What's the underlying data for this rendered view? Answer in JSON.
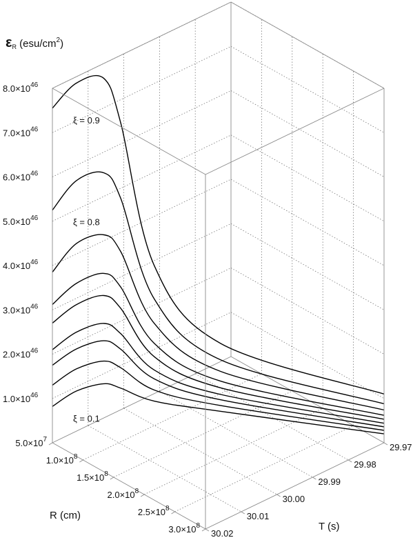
{
  "chart_data": {
    "type": "line",
    "title": "",
    "zlabel": {
      "symbol": "ε",
      "sub": "R",
      "unit": " (esu/cm",
      "sup": "2",
      "close": ")"
    },
    "rlabel": "R (cm)",
    "tlabel": "T (s)",
    "z_ticks": [
      {
        "mant": "1.0",
        "v": 1.0
      },
      {
        "mant": "2.0",
        "v": 2.0
      },
      {
        "mant": "3.0",
        "v": 3.0
      },
      {
        "mant": "4.0",
        "v": 4.0
      },
      {
        "mant": "5.0",
        "v": 5.0
      },
      {
        "mant": "6.0",
        "v": 6.0
      },
      {
        "mant": "7.0",
        "v": 7.0
      },
      {
        "mant": "8.0",
        "v": 8.0
      }
    ],
    "z_exp": "46",
    "r_ticks": [
      {
        "mant": "5.0",
        "exp": "7",
        "v": 0.5
      },
      {
        "mant": "1.0",
        "exp": "8",
        "v": 1.0
      },
      {
        "mant": "1.5",
        "exp": "8",
        "v": 1.5
      },
      {
        "mant": "2.0",
        "exp": "8",
        "v": 2.0
      },
      {
        "mant": "2.5",
        "exp": "8",
        "v": 2.5
      },
      {
        "mant": "3.0",
        "exp": "8",
        "v": 3.0
      }
    ],
    "t_ticks": [
      "29.97",
      "29.98",
      "29.99",
      "30.00",
      "30.01",
      "30.02"
    ],
    "t_values": [
      29.97,
      29.98,
      29.99,
      30.0,
      30.01,
      30.02
    ],
    "r_range": [
      0.5,
      3.0
    ],
    "t_range": [
      29.97,
      30.02
    ],
    "z_range": [
      0,
      8
    ],
    "grid": true,
    "series_labels": [
      {
        "text": "ξ = 0.9",
        "series": 9
      },
      {
        "text": "ξ = 0.8",
        "series": 8
      },
      {
        "text": "ξ = 0.1",
        "series": 1
      }
    ],
    "series": [
      {
        "xi": 0.1,
        "points": [
          [
            0.5,
            30.02,
            0.82
          ],
          [
            0.6,
            30.015,
            1.05
          ],
          [
            0.7,
            30.009,
            1.06
          ],
          [
            0.8,
            30.006,
            0.92
          ],
          [
            1.0,
            30.0,
            0.55
          ],
          [
            1.5,
            29.99,
            0.32
          ],
          [
            3.0,
            29.97,
            0.2
          ]
        ]
      },
      {
        "xi": 0.2,
        "points": [
          [
            0.5,
            30.02,
            1.3
          ],
          [
            0.6,
            30.015,
            1.55
          ],
          [
            0.7,
            30.009,
            1.57
          ],
          [
            0.8,
            30.006,
            1.38
          ],
          [
            1.0,
            30.0,
            0.8
          ],
          [
            1.5,
            29.99,
            0.45
          ],
          [
            3.0,
            29.97,
            0.28
          ]
        ]
      },
      {
        "xi": 0.3,
        "points": [
          [
            0.5,
            30.02,
            1.75
          ],
          [
            0.6,
            30.015,
            2.0
          ],
          [
            0.7,
            30.009,
            2.03
          ],
          [
            0.8,
            30.006,
            1.8
          ],
          [
            1.0,
            30.0,
            1.05
          ],
          [
            1.5,
            29.99,
            0.58
          ],
          [
            3.0,
            29.97,
            0.36
          ]
        ]
      },
      {
        "xi": 0.4,
        "points": [
          [
            0.5,
            30.02,
            2.1
          ],
          [
            0.6,
            30.015,
            2.38
          ],
          [
            0.7,
            30.009,
            2.42
          ],
          [
            0.8,
            30.006,
            2.15
          ],
          [
            1.0,
            30.0,
            1.25
          ],
          [
            1.5,
            29.99,
            0.7
          ],
          [
            3.0,
            29.97,
            0.44
          ]
        ]
      },
      {
        "xi": 0.5,
        "points": [
          [
            0.5,
            30.02,
            2.7
          ],
          [
            0.6,
            30.015,
            3.0
          ],
          [
            0.7,
            30.009,
            3.05
          ],
          [
            0.8,
            30.006,
            2.72
          ],
          [
            1.0,
            30.0,
            1.55
          ],
          [
            1.5,
            29.99,
            0.85
          ],
          [
            3.0,
            29.97,
            0.53
          ]
        ]
      },
      {
        "xi": 0.6,
        "points": [
          [
            0.5,
            30.02,
            3.12
          ],
          [
            0.6,
            30.015,
            3.48
          ],
          [
            0.7,
            30.009,
            3.55
          ],
          [
            0.8,
            30.006,
            3.2
          ],
          [
            1.0,
            30.0,
            1.85
          ],
          [
            1.5,
            29.99,
            1.0
          ],
          [
            3.0,
            29.97,
            0.62
          ]
        ]
      },
      {
        "xi": 0.7,
        "points": [
          [
            0.5,
            30.02,
            3.85
          ],
          [
            0.6,
            30.015,
            4.38
          ],
          [
            0.7,
            30.009,
            4.42
          ],
          [
            0.8,
            30.006,
            4.0
          ],
          [
            1.0,
            30.0,
            2.3
          ],
          [
            1.5,
            29.99,
            1.22
          ],
          [
            3.0,
            29.97,
            0.74
          ]
        ]
      },
      {
        "xi": 0.8,
        "points": [
          [
            0.5,
            30.02,
            5.25
          ],
          [
            0.6,
            30.015,
            5.8
          ],
          [
            0.7,
            30.009,
            5.82
          ],
          [
            0.8,
            30.006,
            5.2
          ],
          [
            1.0,
            30.0,
            2.85
          ],
          [
            1.5,
            29.99,
            1.48
          ],
          [
            3.0,
            29.97,
            0.88
          ]
        ]
      },
      {
        "xi": 0.9,
        "points": [
          [
            0.5,
            30.02,
            7.55
          ],
          [
            0.6,
            30.015,
            8.0
          ],
          [
            0.7,
            30.009,
            7.95
          ],
          [
            0.8,
            30.006,
            6.9
          ],
          [
            1.0,
            30.0,
            3.6
          ],
          [
            1.5,
            29.99,
            1.85
          ],
          [
            3.0,
            29.97,
            1.1
          ]
        ]
      }
    ]
  }
}
